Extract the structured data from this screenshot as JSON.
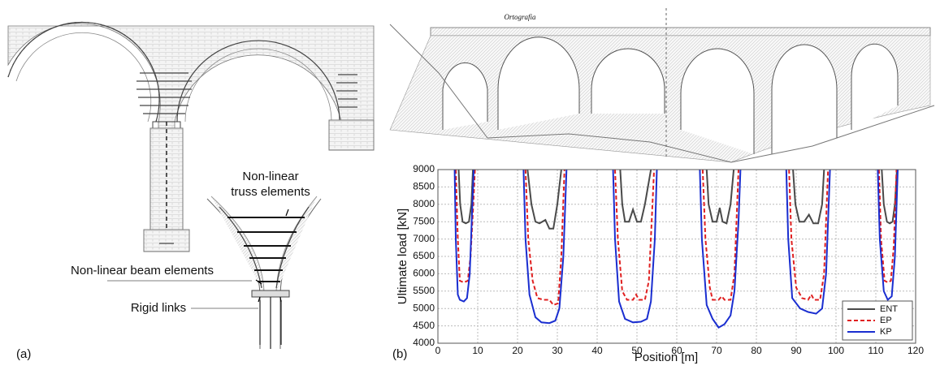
{
  "labels": {
    "truss": [
      "Non-linear",
      "truss elements"
    ],
    "beam": "Non-linear beam elements",
    "rigid": "Rigid links",
    "panel_a": "(a)",
    "panel_b": "(b)",
    "engraving": "Ortografia"
  },
  "chart_data": {
    "type": "line",
    "x_label": "Position [m]",
    "y_label": "Ultimate load [kN]",
    "xlim": [
      0,
      120
    ],
    "xticks": [
      0,
      10,
      20,
      30,
      40,
      50,
      60,
      70,
      80,
      90,
      100,
      110,
      120
    ],
    "ylim": [
      4000,
      9000
    ],
    "yticks": [
      4000,
      4500,
      5000,
      5500,
      6000,
      6500,
      7000,
      7500,
      8000,
      8500,
      9000
    ],
    "grid": true,
    "legend": "lower right",
    "series": [
      {
        "name": "ENT",
        "color": "#4a4a4a",
        "dash": "solid",
        "x": [
          5.2,
          5.6,
          6.2,
          7,
          7.8,
          8.4,
          8.8,
          null,
          22.5,
          23.5,
          24.5,
          25.5,
          27,
          28,
          29,
          30,
          31,
          null,
          45.8,
          46.3,
          47,
          48,
          49,
          50,
          51,
          52,
          53.5,
          null,
          67.5,
          68,
          69,
          70,
          70.8,
          71.5,
          72.5,
          73.5,
          74.3,
          null,
          89.2,
          89.8,
          90.8,
          92,
          93.2,
          94.3,
          95.5,
          96.5,
          97,
          null,
          111.5,
          112,
          112.8,
          113.5,
          114.2,
          114.8,
          115.3
        ],
        "values": [
          9000,
          8000,
          7500,
          7450,
          7500,
          8000,
          9000,
          null,
          9000,
          8000,
          7500,
          7450,
          7550,
          7300,
          7300,
          8000,
          9000,
          null,
          9000,
          8000,
          7500,
          7500,
          7850,
          7500,
          7500,
          8000,
          9000,
          null,
          9000,
          8000,
          7500,
          7500,
          7900,
          7500,
          7450,
          8000,
          9000,
          null,
          9000,
          8000,
          7500,
          7500,
          7700,
          7450,
          7450,
          8000,
          9000,
          null,
          9000,
          8000,
          7500,
          7450,
          7500,
          8000,
          9000
        ]
      },
      {
        "name": "EP",
        "color": "#e02020",
        "dash": "dashed",
        "x": [
          4.5,
          5,
          5.5,
          6.5,
          7.5,
          8.2,
          8.8,
          9.3,
          null,
          22,
          22.7,
          23.8,
          25,
          26.5,
          28,
          29,
          30.2,
          31,
          31.8,
          null,
          44.5,
          45.2,
          46.3,
          47.5,
          49,
          49.8,
          50.5,
          52,
          53,
          54.3,
          null,
          66.5,
          67.2,
          68.3,
          69,
          70.5,
          71.3,
          72,
          73.5,
          74.5,
          75.5,
          null,
          88.2,
          88.8,
          90,
          91.5,
          93,
          93.8,
          94.5,
          96,
          97,
          98,
          null,
          110.8,
          111.3,
          112.2,
          113,
          113.8,
          114.5,
          115.2
        ],
        "values": [
          9000,
          7000,
          5800,
          5750,
          5800,
          6500,
          7800,
          9000,
          null,
          9000,
          7000,
          5800,
          5300,
          5250,
          5250,
          5100,
          5150,
          6500,
          9000,
          null,
          9000,
          7000,
          5500,
          5250,
          5250,
          5400,
          5250,
          5250,
          5800,
          9000,
          null,
          9000,
          7000,
          5600,
          5250,
          5250,
          5350,
          5250,
          5250,
          6000,
          9000,
          null,
          9000,
          7000,
          5600,
          5300,
          5250,
          5400,
          5250,
          5250,
          6000,
          9000,
          null,
          9000,
          7000,
          5800,
          5750,
          5800,
          6800,
          9000
        ]
      },
      {
        "name": "KP",
        "color": "#1a2ed0",
        "dash": "solid",
        "x": [
          4.2,
          4.5,
          5,
          5.5,
          6.5,
          7.3,
          8,
          8.5,
          9,
          null,
          21.5,
          22,
          23,
          24.5,
          26,
          28,
          29.5,
          30.5,
          31.5,
          32.3,
          null,
          44,
          44.5,
          45.5,
          47,
          49,
          51,
          52.5,
          53.5,
          54.5,
          55,
          null,
          65.8,
          66.3,
          67.5,
          69,
          70.5,
          72,
          73.5,
          74.5,
          75.5,
          76,
          null,
          87.5,
          88,
          89,
          91,
          93,
          95,
          96.5,
          97.5,
          98.5,
          null,
          110.5,
          111,
          112,
          113,
          114,
          114.8,
          115.5
        ],
        "values": [
          9000,
          7000,
          5400,
          5250,
          5200,
          5300,
          6000,
          7500,
          9000,
          null,
          9000,
          7000,
          5400,
          4750,
          4600,
          4580,
          4650,
          5000,
          6500,
          9000,
          null,
          9000,
          7000,
          5200,
          4700,
          4600,
          4620,
          4700,
          5200,
          7000,
          9000,
          null,
          9000,
          7000,
          5100,
          4700,
          4450,
          4550,
          4800,
          5500,
          7500,
          9000,
          null,
          9000,
          7000,
          5300,
          5000,
          4900,
          4850,
          5000,
          6000,
          9000,
          null,
          9000,
          7000,
          5500,
          5250,
          5350,
          6500,
          9000
        ]
      }
    ]
  }
}
